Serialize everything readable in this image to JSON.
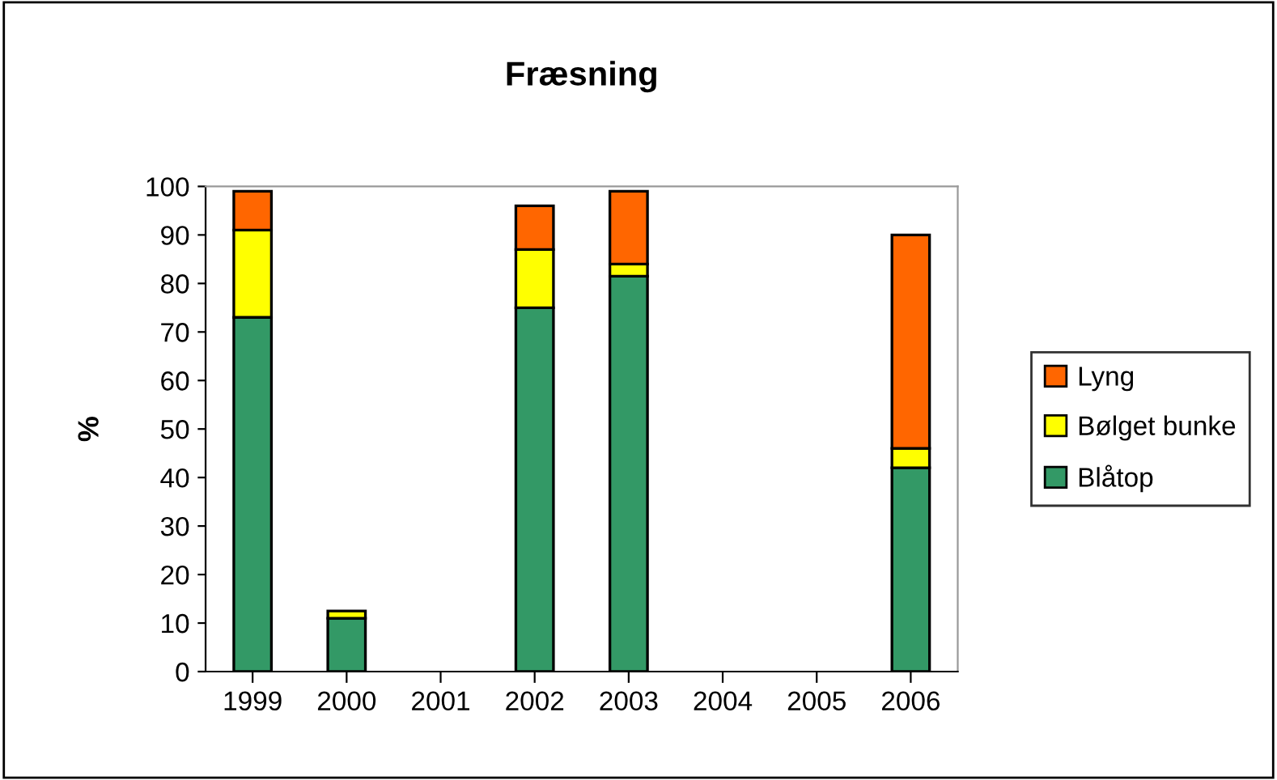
{
  "chart_data": {
    "type": "bar",
    "title": "Fræsning",
    "ylabel": "%",
    "stacked": true,
    "categories": [
      "1999",
      "2000",
      "2001",
      "2002",
      "2003",
      "2004",
      "2005",
      "2006"
    ],
    "series": [
      {
        "name": "Blåtop",
        "color": "#339966",
        "values": [
          73,
          11,
          null,
          75,
          81.5,
          null,
          null,
          42
        ]
      },
      {
        "name": "Bølget bunke",
        "color": "#ffff00",
        "values": [
          18,
          1.5,
          null,
          12,
          2.5,
          null,
          null,
          4
        ]
      },
      {
        "name": "Lyng",
        "color": "#ff6600",
        "values": [
          8,
          null,
          null,
          9,
          15,
          null,
          null,
          44
        ]
      }
    ],
    "ylim": [
      0,
      100
    ],
    "yticks": [
      0,
      10,
      20,
      30,
      40,
      50,
      60,
      70,
      80,
      90,
      100
    ],
    "grid": false,
    "legend": "right"
  }
}
